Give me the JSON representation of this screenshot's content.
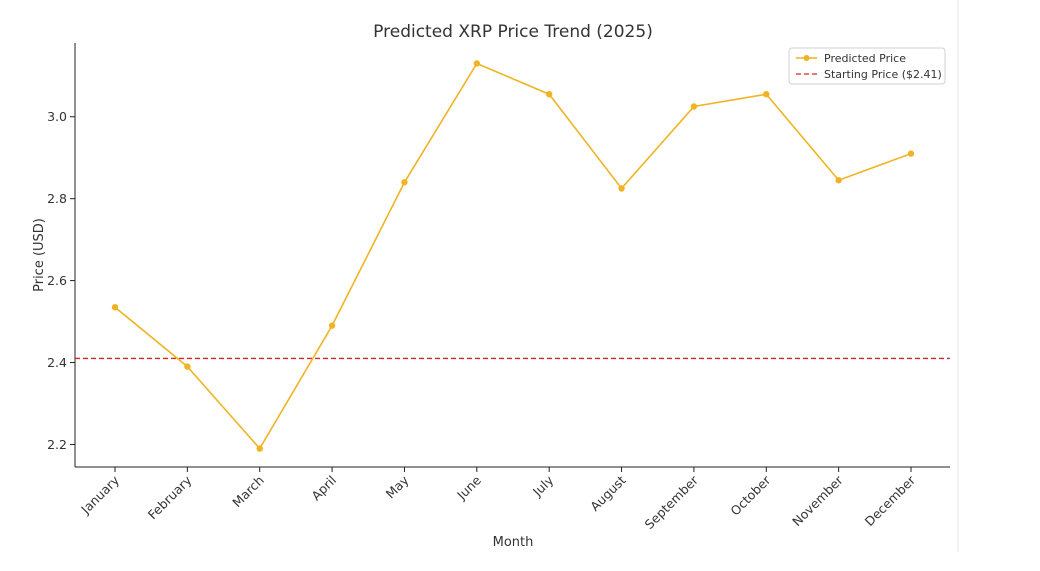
{
  "chart_data": {
    "type": "line",
    "title": "Predicted XRP Price Trend (2025)",
    "xlabel": "Month",
    "ylabel": "Price (USD)",
    "categories": [
      "January",
      "February",
      "March",
      "April",
      "May",
      "June",
      "July",
      "August",
      "September",
      "October",
      "November",
      "December"
    ],
    "series": [
      {
        "name": "Predicted Price",
        "color": "#f0b323",
        "values": [
          2.535,
          2.39,
          2.19,
          2.49,
          2.84,
          3.13,
          3.055,
          2.825,
          3.025,
          3.055,
          2.845,
          2.91
        ]
      }
    ],
    "reference_line": {
      "name": "Starting Price ($2.41)",
      "value": 2.41,
      "color": "#d62728",
      "style": "dashed"
    },
    "yticks": [
      "2.2",
      "2.4",
      "2.6",
      "2.8",
      "3.0"
    ],
    "ylim": [
      2.145,
      3.18
    ],
    "grid": false,
    "legend_position": "top-right"
  }
}
